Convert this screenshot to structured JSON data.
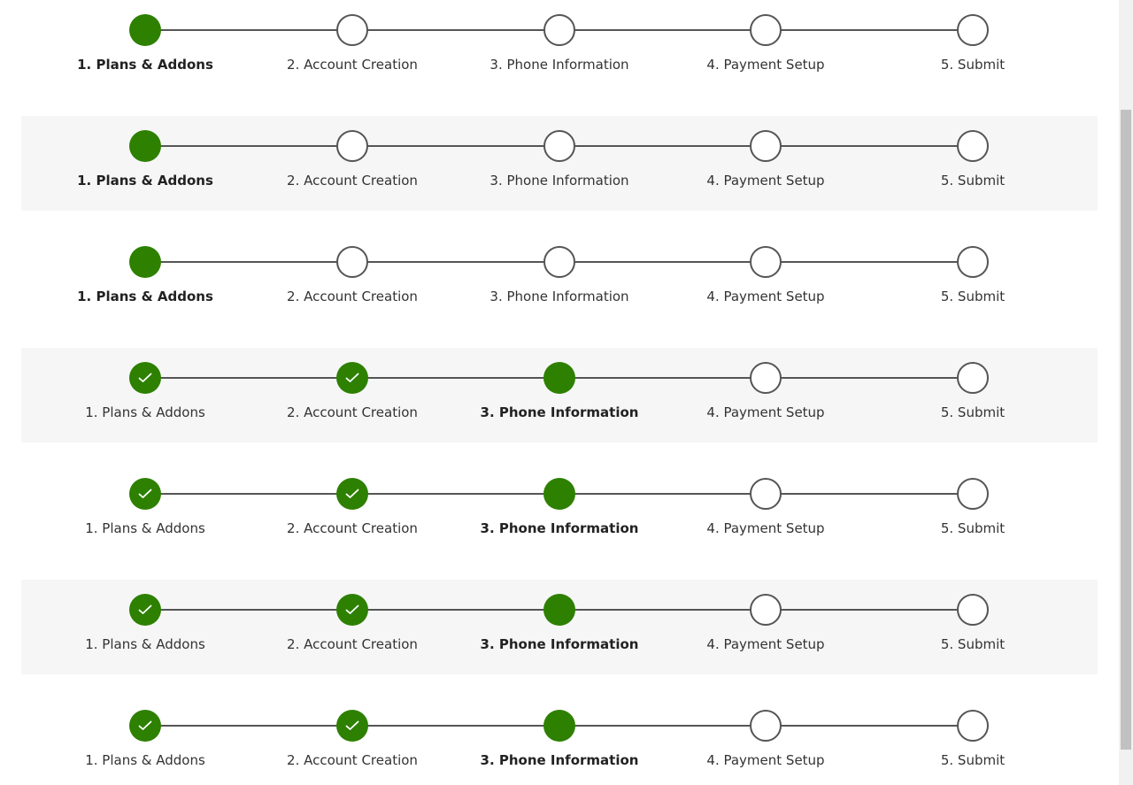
{
  "steps": [
    "1. Plans & Addons",
    "2. Account Creation",
    "3. Phone Information",
    "4. Payment Setup",
    "5. Submit"
  ],
  "colors": {
    "accent": "#2d8000",
    "line": "#555555",
    "shaded_bg": "#f6f6f6"
  },
  "icon": "checkmark-icon",
  "rows": [
    {
      "current_step": 1,
      "shaded": false
    },
    {
      "current_step": 1,
      "shaded": true
    },
    {
      "current_step": 1,
      "shaded": false
    },
    {
      "current_step": 3,
      "shaded": true
    },
    {
      "current_step": 3,
      "shaded": false
    },
    {
      "current_step": 3,
      "shaded": true
    },
    {
      "current_step": 3,
      "shaded": false
    }
  ]
}
